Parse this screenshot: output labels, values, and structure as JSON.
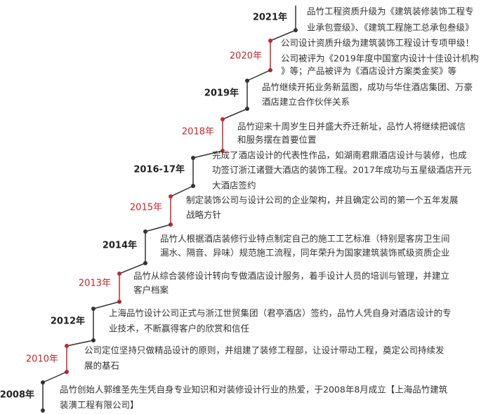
{
  "timeline": [
    {
      "year": "2021年",
      "lines": [
        "品竹工程资质升级为《建筑装修装饰工程专",
        "业承包壹级》、《建筑工程施工总承包叁级》"
      ]
    },
    {
      "year": "2020年",
      "lines": [
        "公司设计资质升级为建筑装饰工程设计专项甲级！",
        "公司被评为《2019年度中国室内设计十佳设计机构",
        "》等；产品被评为《酒店设计方案类金奖》等"
      ]
    },
    {
      "year": "2019年",
      "lines": [
        "品竹继续开拓业务新蓝图，成功与华住酒店集团、万豪",
        "酒店建立合作伙伴关系"
      ]
    },
    {
      "year": "2018年",
      "lines": [
        "品竹迎来十周岁生日并盛大乔迁新址，品竹人将继续把诚信",
        "和服务摆在首要位置"
      ]
    },
    {
      "year": "2016-17年",
      "lines": [
        "完成了酒店设计的代表性作品，如湖南君鼎酒店设计与装修，也成",
        "功签订浙江诸暨大酒店的装饰工程。2017年成功与五星级酒店开元",
        "大酒店签约"
      ]
    },
    {
      "year": "2015年",
      "lines": [
        "制定装饰公司与设计公司的企业架构，并且确定公司的第一个五年发展",
        "战略方针"
      ]
    },
    {
      "year": "2014年",
      "lines": [
        "品竹人根据酒店装修行业特点制定自己的施工工艺标准（特别是客房卫生间",
        "漏水、隔音、异味）规范施工流程，同年荣升为国家建筑装饰贰级资质企业"
      ]
    },
    {
      "year": "2013年",
      "lines": [
        "品竹从综合装修设计转向专做酒店设计服务，着手设计人员的培训与管理，并建立",
        "客户档案"
      ]
    },
    {
      "year": "2012年",
      "lines": [
        "上海品竹设计公司正式与浙江世贸集团（君亭酒店）签约，品竹人凭自身对酒店设计的专",
        "业技术，不断赢得客户的欣赏和信任"
      ]
    },
    {
      "year": "2010年",
      "lines": [
        "公司定位坚持只做精品设计的原则，并组建了装修工程部，让设计带动工程，奠定公司持续发",
        "展的基石"
      ]
    },
    {
      "year": "2008年",
      "lines": [
        "品竹创始人郭维圣先生凭自身专业知识和对装修设计行业的热爱，于2008年8月成立【上海品竹建筑",
        "装潢工程有限公司】"
      ]
    }
  ]
}
